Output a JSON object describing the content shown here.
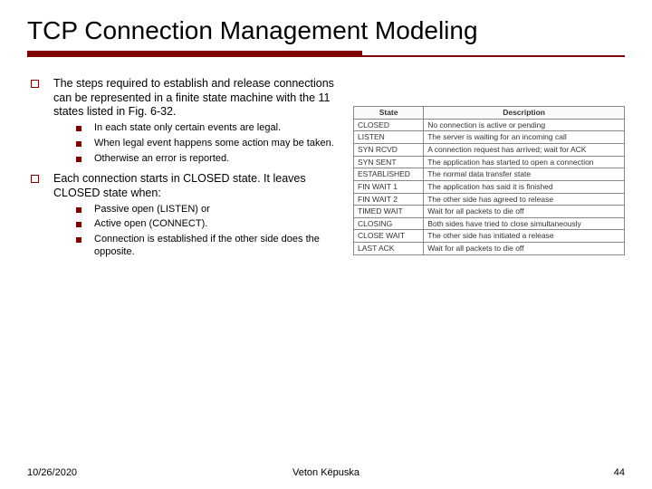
{
  "title": "TCP Connection Management Modeling",
  "bullets": {
    "b1": "The steps required to establish and release connections can be represented in a finite state machine with the 11 states listed in Fig. 6-32.",
    "b1a": "In each state only certain events are legal.",
    "b1b": "When legal event happens some action may be taken.",
    "b1c": "Otherwise an error is reported.",
    "b2": "Each connection starts in CLOSED state. It leaves CLOSED state when:",
    "b2a": "Passive open (LISTEN) or",
    "b2b": "Active open (CONNECT).",
    "b2c": "Connection is established if the other side does the opposite."
  },
  "table": {
    "headers": {
      "h1": "State",
      "h2": "Description"
    },
    "rows": {
      "r0s": "CLOSED",
      "r0d": "No connection is active or pending",
      "r1s": "LISTEN",
      "r1d": "The server is waiting for an incoming call",
      "r2s": "SYN RCVD",
      "r2d": "A connection request has arrived; wait for ACK",
      "r3s": "SYN SENT",
      "r3d": "The application has started to open a connection",
      "r4s": "ESTABLISHED",
      "r4d": "The normal data transfer state",
      "r5s": "FIN WAIT 1",
      "r5d": "The application has said it is finished",
      "r6s": "FIN WAIT 2",
      "r6d": "The other side has agreed to release",
      "r7s": "TIMED WAIT",
      "r7d": "Wait for all packets to die off",
      "r8s": "CLOSING",
      "r8d": "Both sides have tried to close simultaneously",
      "r9s": "CLOSE WAIT",
      "r9d": "The other side has initiated a release",
      "r10s": "LAST ACK",
      "r10d": "Wait for all packets to die off"
    }
  },
  "footer": {
    "date": "10/26/2020",
    "author": "Veton Këpuska",
    "page": "44"
  },
  "colors": {
    "accent": "#800000"
  }
}
